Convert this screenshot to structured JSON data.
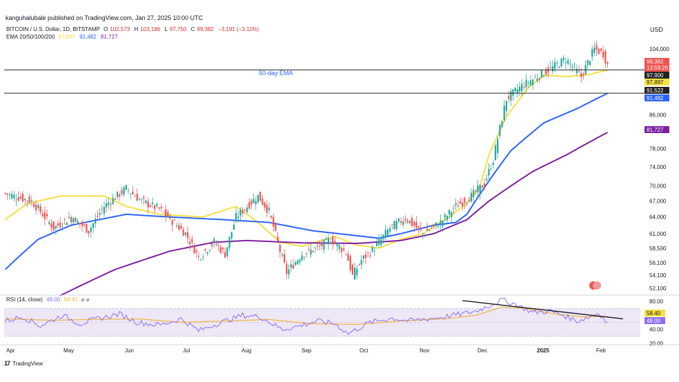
{
  "publisher": "kangu​halubale published on TradingView.com, Jan 27, 2025 10:00 UTC",
  "header": {
    "symbol": "BITCOIN / U.S. Dollar, 1D, BITSTAMP",
    "open_label": "O",
    "open_value": "102,573",
    "high_label": "H",
    "high_value": "103,186",
    "low_label": "L",
    "low_value": "97,750",
    "close_label": "C",
    "close_value": "99,382",
    "change": "−3,191 (−3.11%)",
    "ema_label": "EMA 20/50/100/200",
    "ema20": "97,897",
    "ema50": "91,482",
    "ema100": "81,727"
  },
  "currency": "USD",
  "annotation": "50-day EMA",
  "rsi_header": {
    "label": "RSI (14, close)",
    "rsi": "48.00",
    "ma": "58.40",
    "extra": "⌀ ⌀"
  },
  "footer_brand": "TradingView",
  "colors": {
    "up": "#26a69a",
    "down": "#ef5350",
    "ema20": "#f5e042",
    "ema50": "#2962ff",
    "ema100": "#7b1fa2",
    "rsi": "#8d6cf6",
    "rsi_ma": "#f2b33d",
    "rsi_band": "#ede7f6"
  },
  "chart_data": [
    {
      "type": "candlestick",
      "title": "BITCOIN / U.S. Dollar, 1D, BITSTAMP",
      "x_tick_labels": [
        "Apr",
        "May",
        "Jun",
        "Jul",
        "Aug",
        "Sep",
        "Oct",
        "Nov",
        "Dec",
        "2025",
        "Feb"
      ],
      "y_tick_labels": [
        "52,100",
        "54,100",
        "56,100",
        "58,500",
        "61,000",
        "64,000",
        "67,000",
        "70,000",
        "74,000",
        "78,000",
        "86,000",
        "104,000"
      ],
      "ylim": [
        52100,
        109000
      ],
      "y_scale": "log",
      "horizontal_lines": [
        97900,
        91522
      ],
      "price_labels": [
        {
          "text": "99,382",
          "sub": "13:59:26",
          "value": 99382,
          "color": "#ef5350"
        },
        {
          "text": "97,900",
          "value": 97900,
          "color": "#222222"
        },
        {
          "text": "97,897",
          "value": 97897,
          "color": "#f5e042"
        },
        {
          "text": "91,522",
          "value": 91522,
          "color": "#222222"
        },
        {
          "text": "91,482",
          "value": 91482,
          "color": "#2962ff"
        },
        {
          "text": "81,727",
          "value": 81727,
          "color": "#7b1fa2"
        }
      ],
      "series": [
        {
          "name": "EMA 20",
          "anchors": [
            [
              0,
              63500
            ],
            [
              10,
              66500
            ],
            [
              25,
              68000
            ],
            [
              45,
              68000
            ],
            [
              55,
              66000
            ],
            [
              70,
              64500
            ],
            [
              90,
              64000
            ],
            [
              105,
              66000
            ],
            [
              115,
              63000
            ],
            [
              125,
              59500
            ],
            [
              135,
              58800
            ],
            [
              150,
              60500
            ],
            [
              160,
              59000
            ],
            [
              170,
              58500
            ],
            [
              180,
              60000
            ],
            [
              190,
              61000
            ],
            [
              200,
              63500
            ],
            [
              210,
              66500
            ],
            [
              216,
              70000
            ],
            [
              220,
              76500
            ],
            [
              228,
              85500
            ],
            [
              238,
              93000
            ],
            [
              245,
              96500
            ],
            [
              255,
              96000
            ],
            [
              265,
              96500
            ],
            [
              274,
              97897
            ]
          ]
        },
        {
          "name": "EMA 50",
          "anchors": [
            [
              0,
              55000
            ],
            [
              15,
              60000
            ],
            [
              30,
              62500
            ],
            [
              55,
              64500
            ],
            [
              75,
              64000
            ],
            [
              100,
              63500
            ],
            [
              120,
              63000
            ],
            [
              140,
              61500
            ],
            [
              170,
              60200
            ],
            [
              180,
              61000
            ],
            [
              195,
              62500
            ],
            [
              205,
              63000
            ],
            [
              210,
              64500
            ],
            [
              220,
              71000
            ],
            [
              230,
              77500
            ],
            [
              245,
              84000
            ],
            [
              260,
              87500
            ],
            [
              274,
              91482
            ]
          ]
        },
        {
          "name": "EMA 100",
          "anchors": [
            [
              25,
              51000
            ],
            [
              50,
              55000
            ],
            [
              75,
              58000
            ],
            [
              95,
              59500
            ],
            [
              110,
              59800
            ],
            [
              135,
              59400
            ],
            [
              160,
              59300
            ],
            [
              180,
              59800
            ],
            [
              195,
              61000
            ],
            [
              210,
              63500
            ],
            [
              220,
              67000
            ],
            [
              240,
              73000
            ],
            [
              255,
              76500
            ],
            [
              274,
              81727
            ]
          ]
        }
      ]
    },
    {
      "type": "line",
      "title": "RSI (14, close)",
      "y_tick_labels": [
        "20.00",
        "40.00",
        "80.00"
      ],
      "ylim": [
        20,
        85
      ],
      "band": [
        30,
        70
      ],
      "series": [
        {
          "name": "RSI",
          "last": 48.0
        },
        {
          "name": "RSI MA",
          "last": 58.4
        }
      ],
      "trendline": [
        [
          208,
          81
        ],
        [
          281,
          55
        ]
      ],
      "value_labels": [
        {
          "text": "58.40",
          "color": "#f5e042"
        },
        {
          "text": "48.00",
          "color": "#8d6cf6"
        }
      ]
    }
  ]
}
